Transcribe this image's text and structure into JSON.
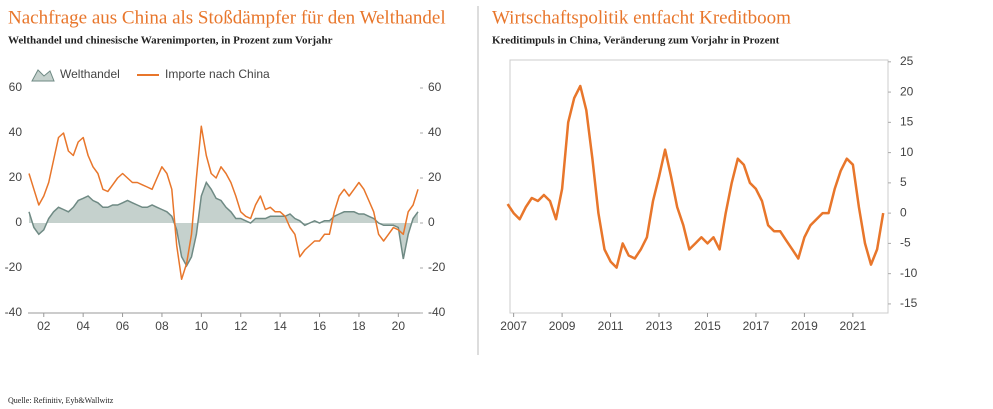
{
  "chart_data": [
    {
      "type": "line",
      "title": "Nachfrage aus China als Stoßdämpfer für den Welthandel",
      "subtitle": "Welthandel und chinesische Warenimporten, in Prozent zum Vorjahr",
      "x": [
        2001.25,
        2001.5,
        2001.75,
        2002,
        2002.25,
        2002.5,
        2002.75,
        2003,
        2003.25,
        2003.5,
        2003.75,
        2004,
        2004.25,
        2004.5,
        2004.75,
        2005,
        2005.25,
        2005.5,
        2005.75,
        2006,
        2006.25,
        2006.5,
        2006.75,
        2007,
        2007.25,
        2007.5,
        2007.75,
        2008,
        2008.25,
        2008.5,
        2008.75,
        2009,
        2009.25,
        2009.5,
        2009.75,
        2010,
        2010.25,
        2010.5,
        2010.75,
        2011,
        2011.25,
        2011.5,
        2011.75,
        2012,
        2012.25,
        2012.5,
        2012.75,
        2013,
        2013.25,
        2013.5,
        2013.75,
        2014,
        2014.25,
        2014.5,
        2014.75,
        2015,
        2015.25,
        2015.5,
        2015.75,
        2016,
        2016.25,
        2016.5,
        2016.75,
        2017,
        2017.25,
        2017.5,
        2017.75,
        2018,
        2018.25,
        2018.5,
        2018.75,
        2019,
        2019.25,
        2019.5,
        2019.75,
        2020,
        2020.25,
        2020.5,
        2020.75,
        2021
      ],
      "series": [
        {
          "name": "Welthandel",
          "style": "area",
          "color": "#6f8a84",
          "fill": "#c5d1cd",
          "values": [
            5,
            -2,
            -5,
            -3,
            2,
            5,
            7,
            6,
            5,
            7,
            10,
            11,
            12,
            10,
            9,
            7,
            7,
            8,
            8,
            9,
            10,
            9,
            8,
            7,
            7,
            8,
            7,
            6,
            5,
            3,
            -3,
            -15,
            -19,
            -15,
            -5,
            12,
            18,
            15,
            11,
            10,
            7,
            5,
            2,
            2,
            1,
            0,
            2,
            2,
            2,
            3,
            3,
            3,
            3,
            4,
            2,
            1,
            -1,
            0,
            1,
            0,
            1,
            1,
            3,
            4,
            5,
            5,
            5,
            4,
            4,
            3,
            2,
            0,
            -1,
            -1,
            -1,
            -2,
            -16,
            -5,
            2,
            5
          ]
        },
        {
          "name": "Importe nach China",
          "style": "line",
          "color": "#e8762b",
          "values": [
            22,
            15,
            8,
            12,
            18,
            28,
            38,
            40,
            32,
            30,
            36,
            38,
            30,
            25,
            22,
            15,
            14,
            17,
            20,
            22,
            20,
            18,
            18,
            17,
            16,
            15,
            20,
            25,
            22,
            15,
            -10,
            -25,
            -18,
            -5,
            20,
            43,
            30,
            22,
            20,
            25,
            22,
            18,
            12,
            5,
            3,
            2,
            8,
            12,
            6,
            7,
            5,
            5,
            3,
            -2,
            -5,
            -15,
            -12,
            -10,
            -8,
            -8,
            -5,
            -5,
            5,
            12,
            15,
            12,
            15,
            18,
            15,
            10,
            5,
            -5,
            -8,
            -5,
            -2,
            -3,
            -5,
            5,
            8,
            15
          ]
        }
      ],
      "xlim": [
        2001.2,
        2021.1
      ],
      "xticks": [
        {
          "value": 2002,
          "label": "02"
        },
        {
          "value": 2004,
          "label": "04"
        },
        {
          "value": 2006,
          "label": "06"
        },
        {
          "value": 2008,
          "label": "08"
        },
        {
          "value": 2010,
          "label": "10"
        },
        {
          "value": 2012,
          "label": "12"
        },
        {
          "value": 2014,
          "label": "14"
        },
        {
          "value": 2016,
          "label": "16"
        },
        {
          "value": 2018,
          "label": "18"
        },
        {
          "value": 2020,
          "label": "20"
        }
      ],
      "ylim": [
        -40,
        60
      ],
      "yticks": [
        -40,
        -20,
        0,
        20,
        40,
        60
      ]
    },
    {
      "type": "line",
      "title": "Wirtschaftspolitik entfacht Kreditboom",
      "subtitle": "Kreditimpuls in China, Veränderung zum Vorjahr in Prozent",
      "x": [
        2006.75,
        2007,
        2007.25,
        2007.5,
        2007.75,
        2008,
        2008.25,
        2008.5,
        2008.75,
        2009,
        2009.25,
        2009.5,
        2009.75,
        2010,
        2010.25,
        2010.5,
        2010.75,
        2011,
        2011.25,
        2011.5,
        2011.75,
        2012,
        2012.25,
        2012.5,
        2012.75,
        2013,
        2013.25,
        2013.5,
        2013.75,
        2014,
        2014.25,
        2014.5,
        2014.75,
        2015,
        2015.25,
        2015.5,
        2015.75,
        2016,
        2016.25,
        2016.5,
        2016.75,
        2017,
        2017.25,
        2017.5,
        2017.75,
        2018,
        2018.25,
        2018.5,
        2018.75,
        2019,
        2019.25,
        2019.5,
        2019.75,
        2020,
        2020.25,
        2020.5,
        2020.75,
        2021,
        2021.25,
        2021.5,
        2021.75,
        2022,
        2022.25
      ],
      "series": [
        {
          "style": "line",
          "color": "#e8762b",
          "values": [
            1.5,
            0,
            -1,
            1,
            2.5,
            2,
            3,
            2,
            -1,
            4,
            15,
            19,
            21,
            17,
            9,
            0,
            -6,
            -8,
            -9,
            -5,
            -7,
            -7.5,
            -6,
            -4,
            2,
            6,
            10.5,
            6,
            1,
            -2,
            -6,
            -5,
            -4,
            -5,
            -4,
            -6,
            0,
            5,
            9,
            8,
            5,
            4,
            2,
            -2,
            -3,
            -3,
            -4.5,
            -6,
            -7.5,
            -4,
            -2,
            -1,
            0,
            0,
            4,
            7,
            9,
            8,
            1,
            -5,
            -8.5,
            -6,
            0
          ]
        }
      ],
      "xlim": [
        2006.85,
        2022.45
      ],
      "xticks": [
        2007,
        2009,
        2011,
        2013,
        2015,
        2017,
        2019,
        2021
      ],
      "ylim": [
        -16.5,
        25.3
      ],
      "yticks": [
        -15,
        -10,
        -5,
        0,
        5,
        10,
        15,
        20,
        25
      ],
      "frame": true
    }
  ],
  "source": "Quelle: Refinitiv, Eyb&Wallwitz"
}
